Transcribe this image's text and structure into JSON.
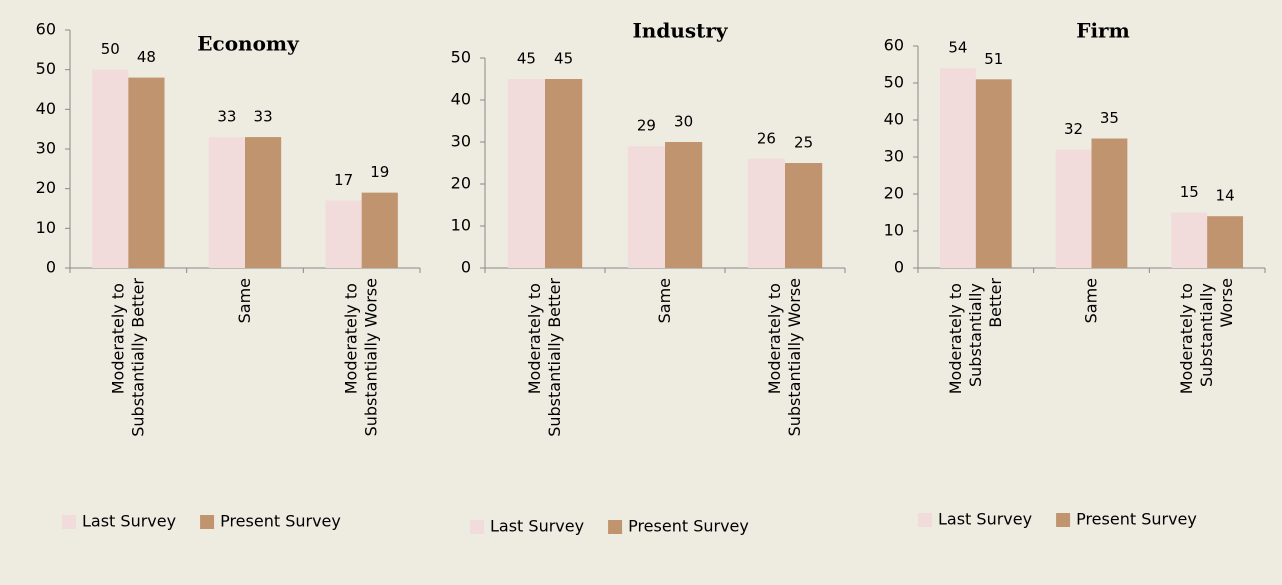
{
  "chart_data": [
    {
      "type": "bar",
      "title": "Economy",
      "categories": [
        "Moderately to Substantially Better",
        "Same",
        "Moderately to Substantially Worse"
      ],
      "series": [
        {
          "name": "Last Survey",
          "color": "#f2dcdb",
          "values": [
            50,
            33,
            17
          ]
        },
        {
          "name": "Present Survey",
          "color": "#c0946e",
          "values": [
            48,
            33,
            19
          ]
        }
      ],
      "ylim": [
        0,
        60
      ],
      "yticks": [
        0,
        10,
        20,
        30,
        40,
        50,
        60
      ],
      "grid": false
    },
    {
      "type": "bar",
      "title": "Industry",
      "categories": [
        "Moderately to Substantially Better",
        "Same",
        "Moderately to Substantially Worse"
      ],
      "series": [
        {
          "name": "Last Survey",
          "color": "#f2dcdb",
          "values": [
            45,
            29,
            26
          ]
        },
        {
          "name": "Present Survey",
          "color": "#c0946e",
          "values": [
            45,
            30,
            25
          ]
        }
      ],
      "ylim": [
        0,
        50
      ],
      "yticks": [
        0,
        10,
        20,
        30,
        40,
        50
      ],
      "grid": false
    },
    {
      "type": "bar",
      "title": "Firm",
      "categories": [
        "Moderately to Substantially Better",
        "Same",
        "Moderately to Substantially Worse"
      ],
      "series": [
        {
          "name": "Last Survey",
          "color": "#f2dcdb",
          "values": [
            54,
            32,
            15
          ]
        },
        {
          "name": "Present Survey",
          "color": "#c0946e",
          "values": [
            51,
            35,
            14
          ]
        }
      ],
      "ylim": [
        0,
        60
      ],
      "yticks": [
        0,
        10,
        20,
        30,
        40,
        50,
        60
      ],
      "grid": false
    }
  ]
}
